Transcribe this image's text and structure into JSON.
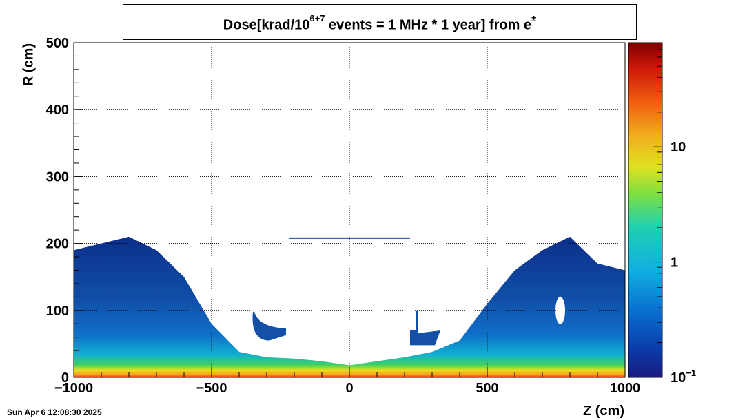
{
  "chart_data": {
    "type": "heatmap",
    "title_parts": {
      "prefix": "Dose[krad/10",
      "exponent": "6+7",
      "middle": " events = 1 MHz * 1 year] from e",
      "particle_sup": "±"
    },
    "xlabel": "Z (cm)",
    "ylabel": "R (cm)",
    "xlim": [
      -1000,
      1000
    ],
    "ylim": [
      0,
      500
    ],
    "x_ticks": [
      -1000,
      -500,
      0,
      500,
      1000
    ],
    "x_tick_labels": [
      "−1000",
      "−500",
      "0",
      "500",
      "1000"
    ],
    "y_ticks": [
      0,
      100,
      200,
      300,
      400,
      500
    ],
    "y_tick_labels": [
      "0",
      "100",
      "200",
      "300",
      "400",
      "500"
    ],
    "grid": true,
    "colorbar": {
      "scale": "log",
      "range": [
        0.1,
        80
      ],
      "ticks": [
        0.1,
        1,
        10
      ],
      "tick_labels": [
        {
          "base": "10",
          "exp": "−1"
        },
        {
          "base": "1",
          "exp": ""
        },
        {
          "base": "10",
          "exp": ""
        }
      ]
    },
    "envelope": {
      "description_points_z": [
        -1000,
        -800,
        -700,
        -600,
        -500,
        -400,
        -300,
        -200,
        -100,
        0,
        100,
        200,
        300,
        400,
        500,
        600,
        700,
        800,
        900,
        1000
      ],
      "outer_R": [
        190,
        210,
        190,
        150,
        80,
        38,
        30,
        28,
        24,
        18,
        24,
        30,
        38,
        55,
        110,
        160,
        190,
        210,
        170,
        160
      ]
    },
    "features": {
      "horizontal_line": {
        "z": [
          -220,
          220
        ],
        "R": 208
      },
      "left_blob": {
        "z": [
          -350,
          -230
        ],
        "R": [
          55,
          98
        ]
      },
      "right_blob": {
        "z": [
          220,
          330
        ],
        "R": [
          48,
          100
        ]
      }
    }
  },
  "timestamp": "Sun Apr  6 12:08:30 2025"
}
